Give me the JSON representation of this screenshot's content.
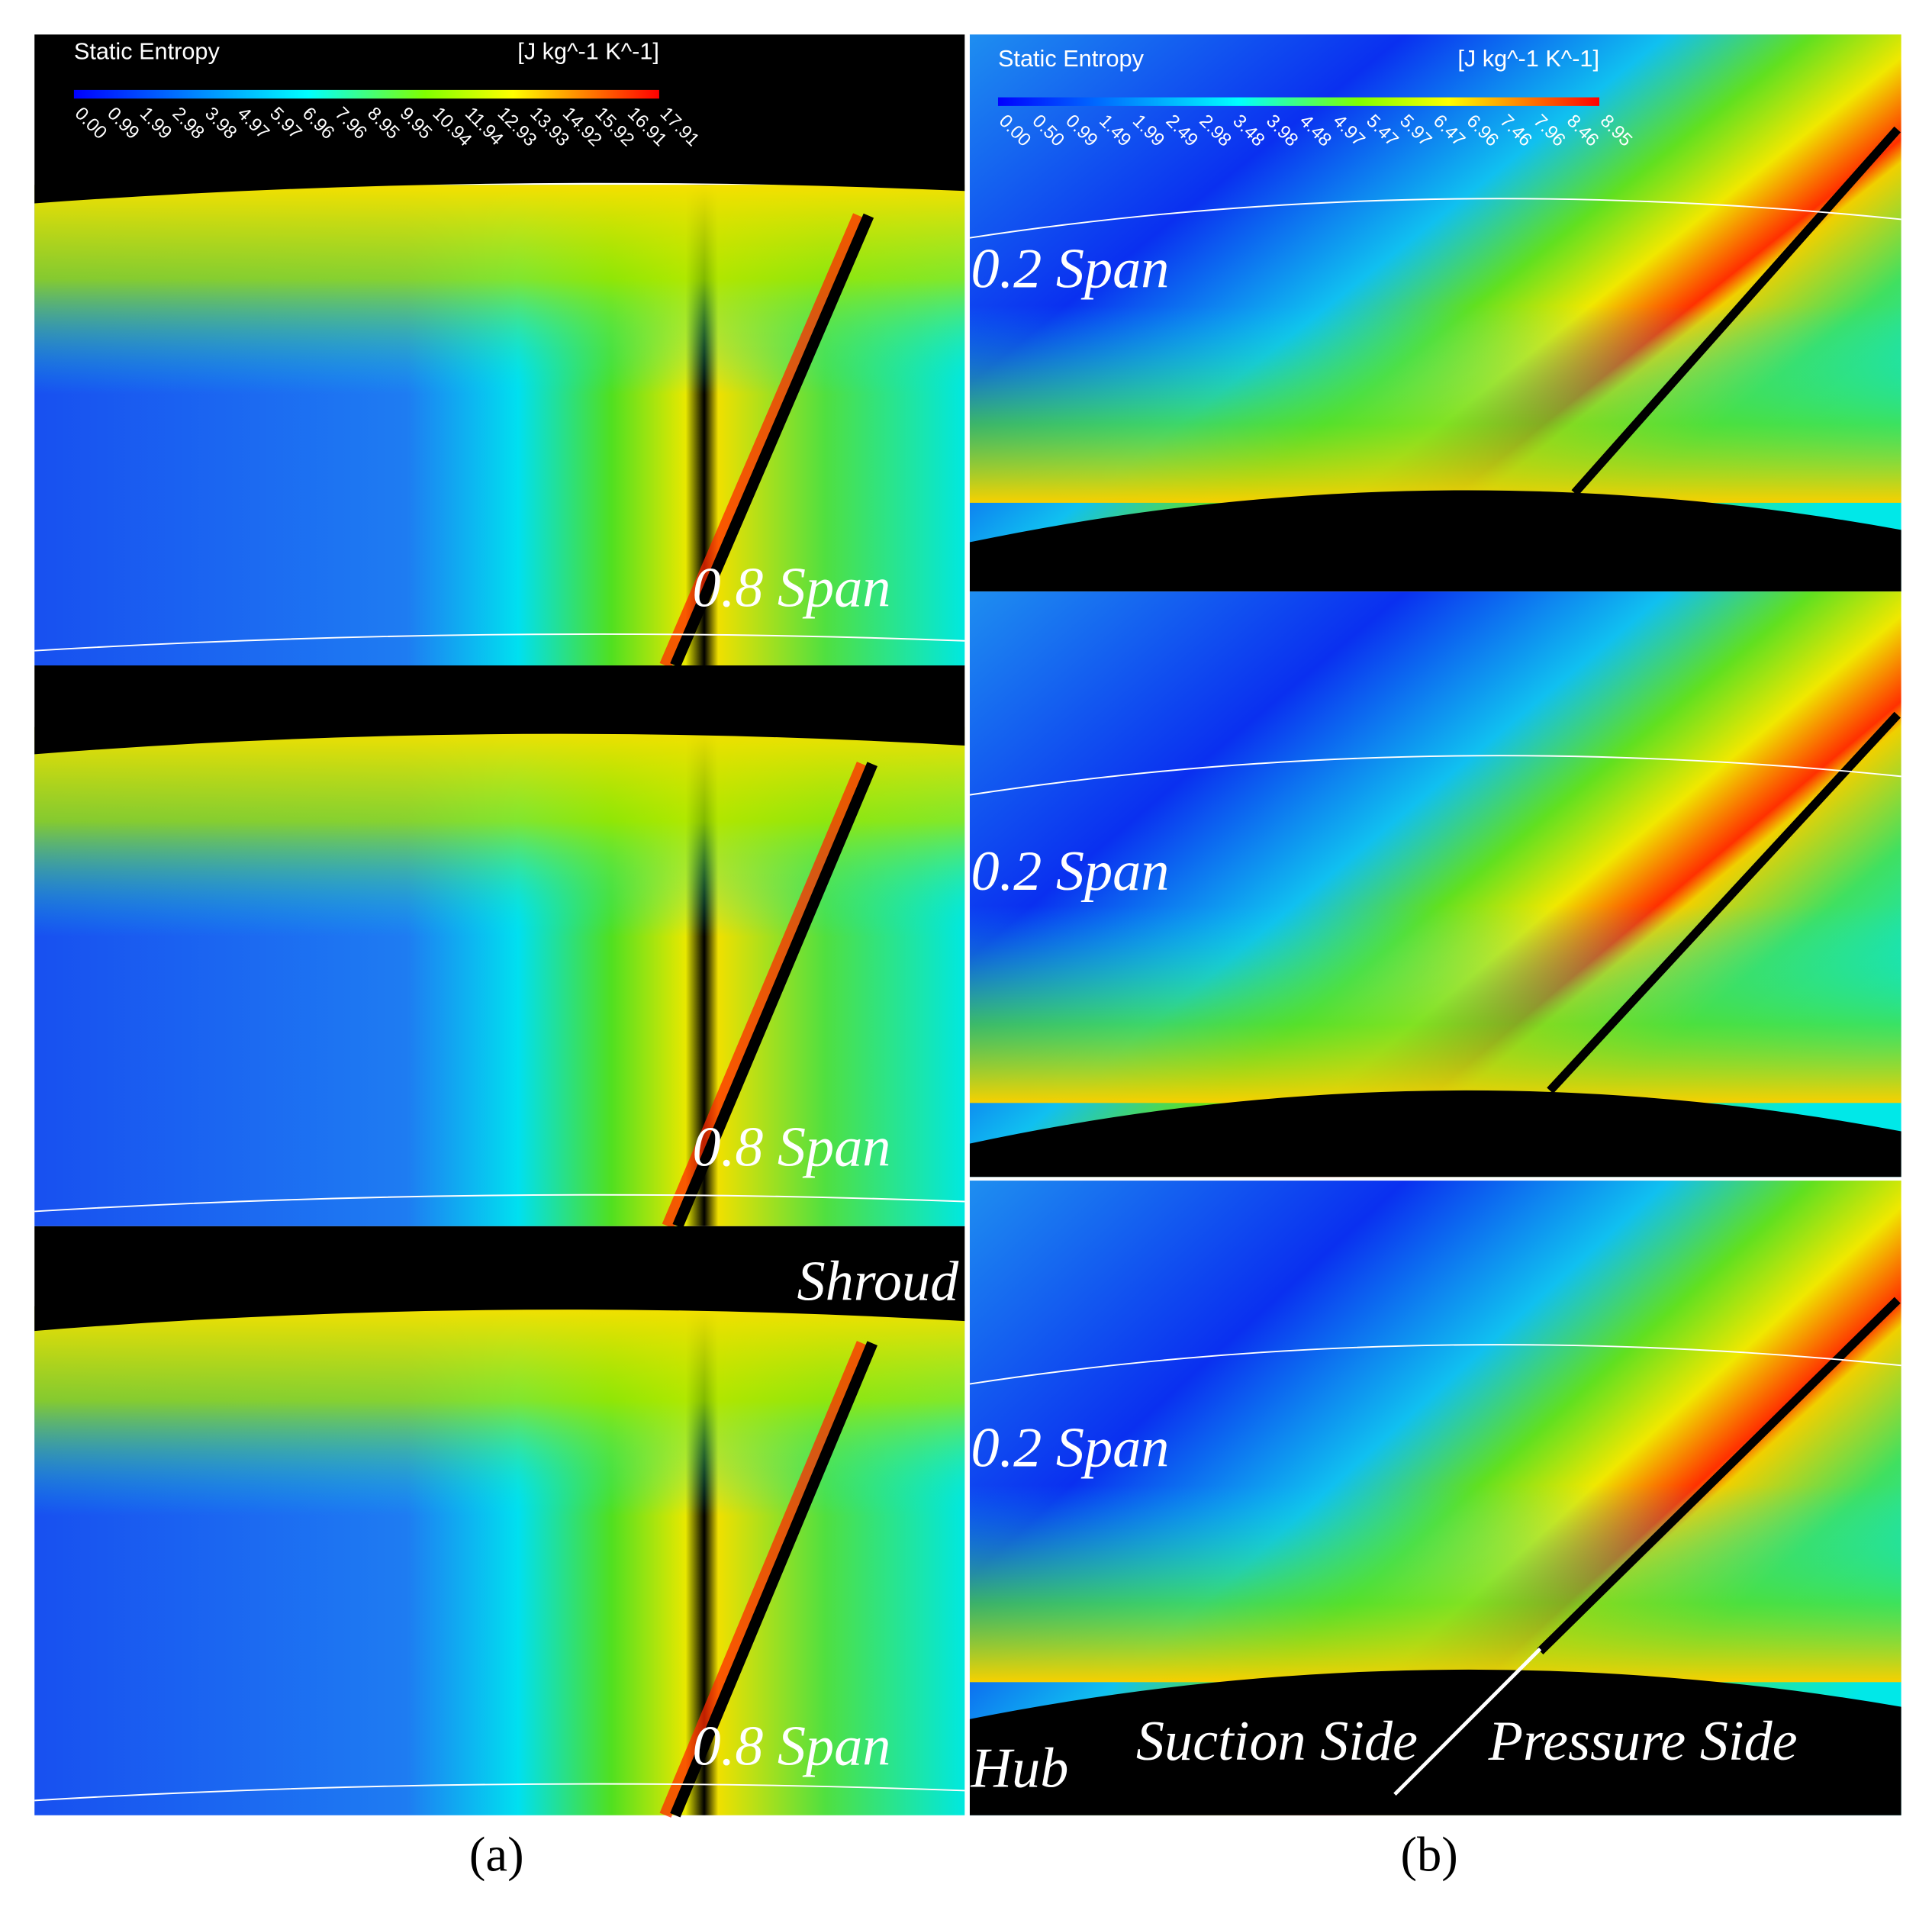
{
  "panel_a": {
    "caption": "(a)",
    "legend": {
      "title": "Static Entropy",
      "unit": "[J kg^-1 K^-1]",
      "ticks": [
        "0.00",
        "0.99",
        "1.99",
        "2.98",
        "3.98",
        "4.97",
        "5.97",
        "6.96",
        "7.96",
        "8.95",
        "9.95",
        "10.94",
        "11.94",
        "12.93",
        "13.93",
        "14.92",
        "15.92",
        "16.91",
        "17.91"
      ]
    },
    "span_labels": [
      "0.8 Span",
      "0.8 Span",
      "0.8 Span"
    ],
    "shroud_label": "Shroud"
  },
  "panel_b": {
    "caption": "(b)",
    "legend": {
      "title": "Static Entropy",
      "unit": "[J kg^-1 K^-1]",
      "ticks": [
        "0.00",
        "0.50",
        "0.99",
        "1.49",
        "1.99",
        "2.49",
        "2.98",
        "3.48",
        "3.98",
        "4.48",
        "4.97",
        "5.47",
        "5.97",
        "6.47",
        "6.96",
        "7.46",
        "7.96",
        "8.46",
        "8.95"
      ]
    },
    "span_labels": [
      "0.2 Span",
      "0.2 Span",
      "0.2 Span"
    ],
    "hub_label": "Hub",
    "suction_side_label": "Suction Side",
    "pressure_side_label": "Pressure Side"
  }
}
